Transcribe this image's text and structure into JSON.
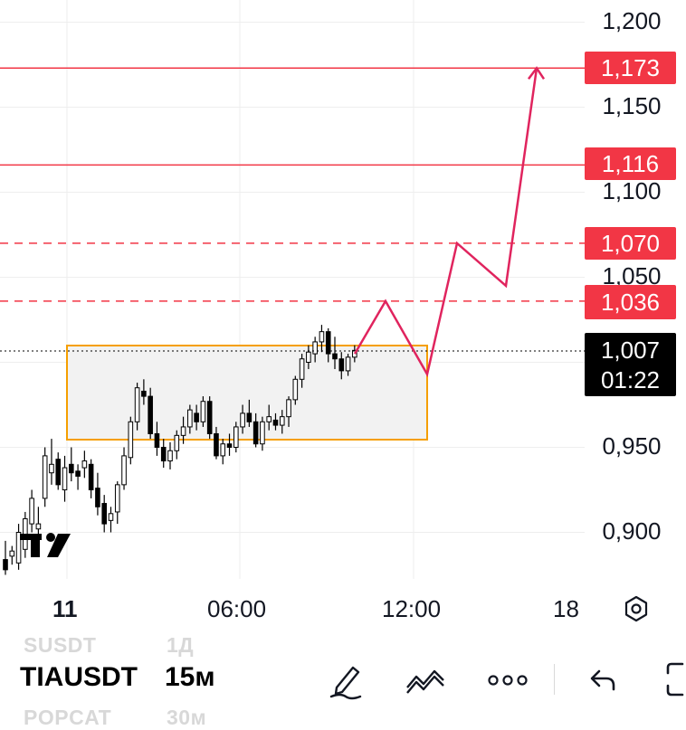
{
  "chart_data": {
    "type": "candlestick",
    "symbol": "TIAUSDT",
    "interval": "15м",
    "y_axis": {
      "ticks": [
        "1,200",
        "1,150",
        "1,100",
        "1,050",
        "0,950",
        "0,900"
      ]
    },
    "x_axis": {
      "ticks": [
        "11",
        "06:00",
        "12:00",
        "18"
      ]
    },
    "last_price": "1,007",
    "countdown": "01:22",
    "levels": [
      {
        "label": "1,173",
        "value": 1.173,
        "style": "solid"
      },
      {
        "label": "1,116",
        "value": 1.116,
        "style": "solid"
      },
      {
        "label": "1,070",
        "value": 1.07,
        "style": "dashed"
      },
      {
        "label": "1,036",
        "value": 1.036,
        "style": "dashed"
      }
    ],
    "range_box": {
      "low": 0.957,
      "high": 1.011
    },
    "projection_path": [
      1.005,
      1.036,
      0.993,
      1.07,
      1.045,
      1.173
    ],
    "colors": {
      "level": "#f23645",
      "path": "#e0245e",
      "box_border": "#f59f00",
      "box_fill": "#f2f2f2",
      "candle": "#000000"
    }
  },
  "ui": {
    "bottom": {
      "symbol": "TIAUSDT",
      "interval": "15м",
      "ghost_top_symbol": "SUSDT",
      "ghost_top_interval": "1Д",
      "ghost_bottom_symbol": "POPCAT",
      "ghost_bottom_interval": "30м",
      "icons": [
        "pencil-icon",
        "drawing-tools-icon",
        "more-icon",
        "undo-icon"
      ]
    },
    "settings_icon": "settings-icon",
    "logo": "tradingview-logo"
  }
}
